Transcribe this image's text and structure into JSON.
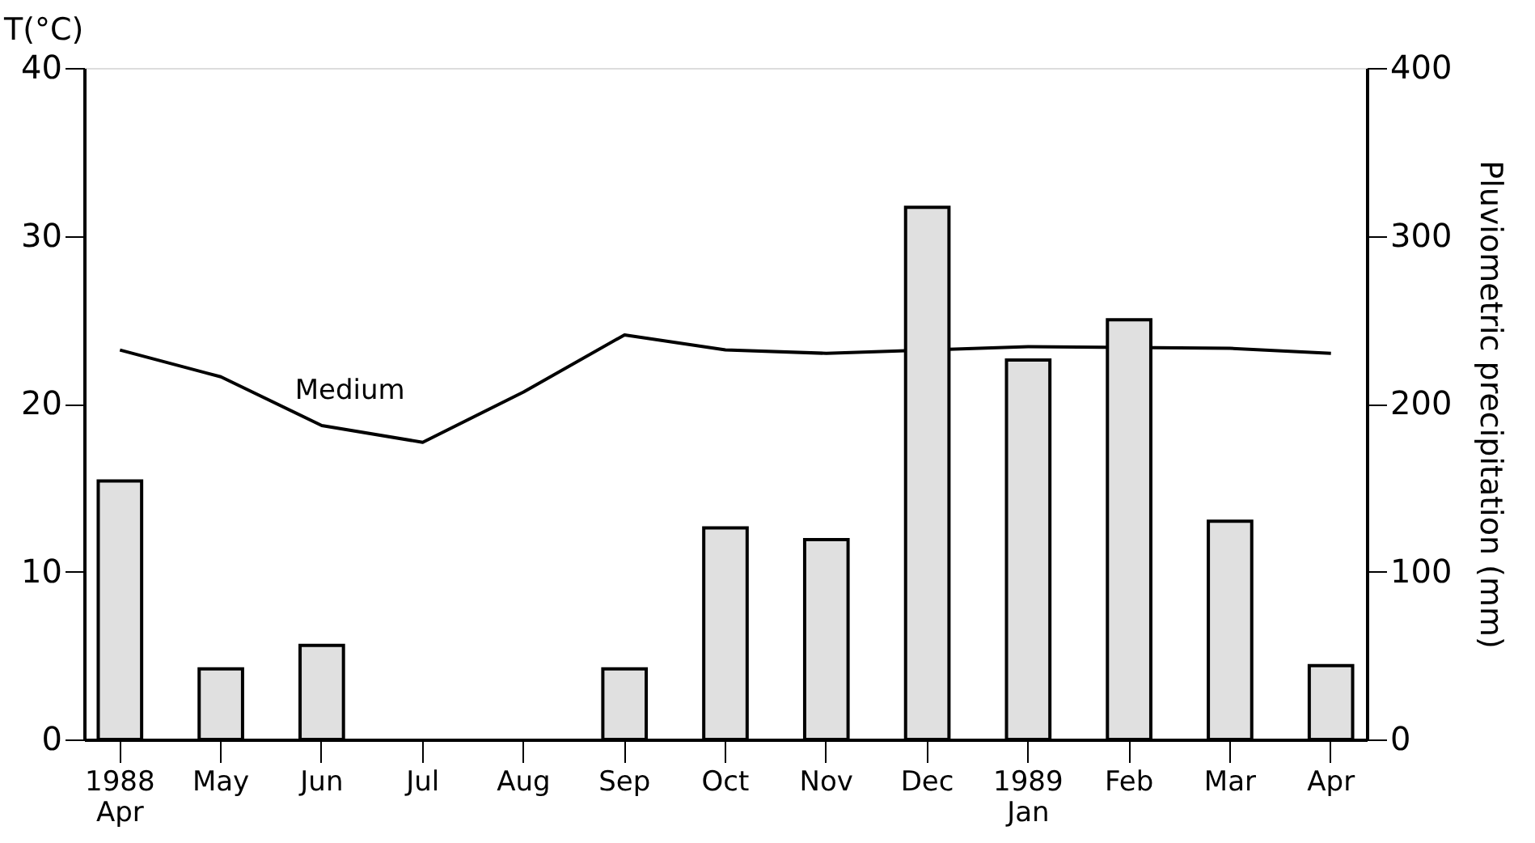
{
  "chart_data": {
    "type": "bar",
    "categories": [
      "1988\nApr",
      "May",
      "Jun",
      "Jul",
      "Aug",
      "Sep",
      "Oct",
      "Nov",
      "Dec",
      "1989\nJan",
      "Feb",
      "Mar",
      "Apr"
    ],
    "ylabel": "T(°C)",
    "y2label": "Pluviometric precipitation (mm)",
    "ylim": [
      0,
      40
    ],
    "yticks": [
      0,
      10,
      20,
      30,
      40
    ],
    "y2lim": [
      0,
      400
    ],
    "y2ticks": [
      0,
      100,
      200,
      300,
      400
    ],
    "series": [
      {
        "name": "Medium",
        "type": "line",
        "axis": "y",
        "color": "#000000",
        "values": [
          23.2,
          21.6,
          18.7,
          17.7,
          20.7,
          24.1,
          23.2,
          23.0,
          null,
          23.4,
          null,
          23.3,
          23.0
        ]
      },
      {
        "axis": "y2",
        "color": "#e0e0e0",
        "values": [
          154,
          42,
          56,
          null,
          null,
          42,
          126,
          119,
          317,
          226,
          250,
          130,
          44
        ]
      }
    ]
  }
}
